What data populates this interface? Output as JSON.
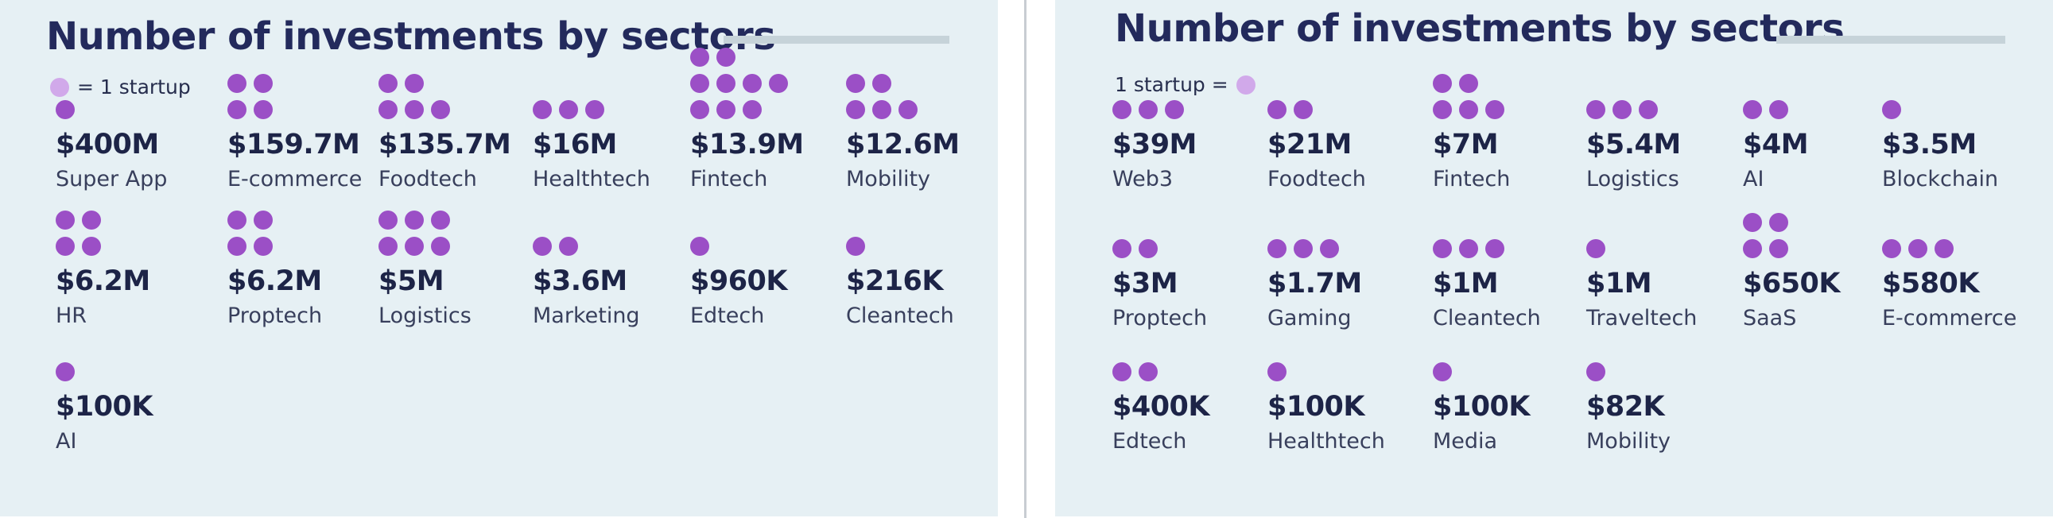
{
  "colors": {
    "panel_bg": "#e6f0f4",
    "title": "#232a5c",
    "dot": "#9b4fc6",
    "legend_dot": "#d1a9ea",
    "value_text": "#1d2447"
  },
  "chart_data": [
    {
      "type": "pictogram",
      "title": "Number of investments by sectors",
      "legend": {
        "text": "= 1 startup",
        "unit": "1 startup"
      },
      "categories": [
        "Super App",
        "E-commerce",
        "Foodtech",
        "Healthtech",
        "Fintech",
        "Mobility",
        "HR",
        "Proptech",
        "Logistics",
        "Marketing",
        "Edtech",
        "Cleantech",
        "AI"
      ],
      "series": [
        {
          "values": [
            1,
            4,
            5,
            3,
            9,
            5,
            4,
            4,
            6,
            2,
            1,
            1,
            1
          ]
        }
      ],
      "amounts": [
        "$400M",
        "$159.7M",
        "$135.7M",
        "$16M",
        "$13.9M",
        "$12.6M",
        "$6.2M",
        "$6.2M",
        "$5M",
        "$3.6M",
        "$960K",
        "$216K",
        "$100K"
      ]
    },
    {
      "type": "pictogram",
      "title": "Number of investments by sectors",
      "legend": {
        "text": "1 startup =",
        "unit": "1 startup"
      },
      "categories": [
        "Web3",
        "Foodtech",
        "Fintech",
        "Logistics",
        "AI",
        "Blockchain",
        "Proptech",
        "Gaming",
        "Cleantech",
        "Traveltech",
        "SaaS",
        "E-commerce",
        "Edtech",
        "Healthtech",
        "Media",
        "Mobility"
      ],
      "series": [
        {
          "values": [
            3,
            2,
            5,
            3,
            2,
            1,
            2,
            3,
            3,
            1,
            4,
            3,
            2,
            1,
            1,
            1
          ]
        }
      ],
      "amounts": [
        "$39M",
        "$21M",
        "$7M",
        "$5.4M",
        "$4M",
        "$3.5M",
        "$3M",
        "$1.7M",
        "$1M",
        "$1M",
        "$650K",
        "$580K",
        "$400K",
        "$100K",
        "$100K",
        "$82K"
      ]
    }
  ]
}
